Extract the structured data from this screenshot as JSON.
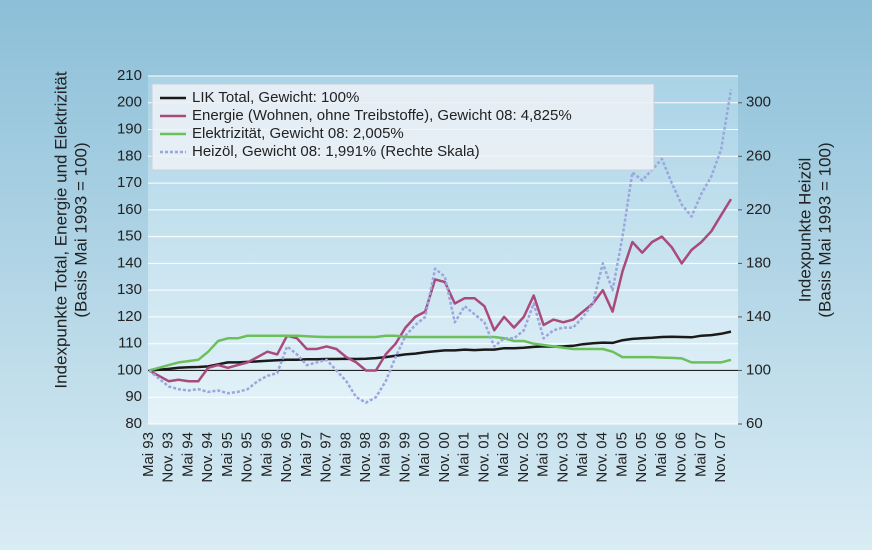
{
  "chart_data": {
    "type": "line",
    "ylabel": [
      "Indexpunkte Total, Energie und Elektrizität",
      "(Basis Mai 1993 = 100)"
    ],
    "y2label": [
      "Indexpunkte Heizöl",
      "(Basis Mai 1993 = 100)"
    ],
    "categories": [
      "Mai 93",
      null,
      "Nov. 93",
      null,
      "Mai 94",
      null,
      "Nov. 94",
      null,
      "Mai 95",
      null,
      "Nov. 95",
      null,
      "Mai 96",
      null,
      "Nov. 96",
      null,
      "Mai 97",
      null,
      "Nov. 97",
      null,
      "Mai 98",
      null,
      "Nov. 98",
      null,
      "Mai 99",
      null,
      "Nov. 99",
      null,
      "Mai 00",
      null,
      "Nov. 00",
      null,
      "Mai 01",
      null,
      "Nov. 01",
      null,
      "Mai 02",
      null,
      "Nov. 02",
      null,
      "Mai 03",
      null,
      "Nov. 03",
      null,
      "Mai 04",
      null,
      "Nov. 04",
      null,
      "Mai 05",
      null,
      "Nov. 05",
      null,
      "Mai 06",
      null,
      "Nov. 06",
      null,
      "Mai 07",
      null,
      "Nov. 07",
      null
    ],
    "series": [
      {
        "name": "LIK Total, Gewicht: 100%",
        "color": "#1a1a1a",
        "style": "solid",
        "values": [
          100,
          100.3,
          100.6,
          101,
          101.2,
          101.3,
          101.5,
          102.3,
          103,
          103,
          103.2,
          103.4,
          103.6,
          103.8,
          104,
          104,
          104.2,
          104.2,
          104.3,
          104.3,
          104.4,
          104.3,
          104.4,
          104.6,
          105,
          105.5,
          106,
          106.3,
          106.8,
          107.2,
          107.5,
          107.5,
          107.8,
          107.6,
          107.8,
          107.8,
          108.3,
          108.3,
          108.5,
          108.8,
          109,
          108.9,
          109,
          109.2,
          109.8,
          110.2,
          110.4,
          110.3,
          111.3,
          111.8,
          112,
          112.2,
          112.5,
          112.6,
          112.5,
          112.4,
          113,
          113.2,
          113.7,
          114.5
        ]
      },
      {
        "name": "Energie (Wohnen, ohne Treibstoffe), Gewicht 08: 4,825%",
        "color": "#a84a7c",
        "style": "solid",
        "values": [
          100,
          98,
          96,
          96.5,
          96,
          96,
          101,
          102,
          101,
          102,
          103,
          105,
          107,
          106,
          113,
          112,
          108,
          108,
          109,
          108,
          105,
          103,
          100,
          100,
          106,
          110,
          116,
          120,
          122,
          134,
          133,
          125,
          127,
          127,
          124,
          115,
          120,
          116,
          120,
          128,
          117,
          119,
          118,
          119,
          122,
          125,
          130,
          122,
          137,
          148,
          144,
          148,
          150,
          146,
          140,
          145,
          148,
          152,
          158,
          164
        ]
      },
      {
        "name": "Elektrizität, Gewicht 08: 2,005%",
        "color": "#6cc05a",
        "style": "solid",
        "values": [
          100,
          101,
          102,
          103,
          103.5,
          104,
          107,
          111,
          112,
          112,
          113,
          113,
          113,
          113,
          113,
          113,
          112.8,
          112.6,
          112.5,
          112.5,
          112.5,
          112.5,
          112.5,
          112.5,
          113,
          113,
          112.5,
          112.5,
          112.5,
          112.5,
          112.5,
          112.5,
          112.5,
          112.5,
          112.5,
          112.5,
          112,
          111,
          111,
          110,
          109.5,
          109,
          108.5,
          108,
          108,
          108,
          108,
          107,
          105,
          105,
          105,
          105,
          104.8,
          104.7,
          104.5,
          103,
          103,
          103,
          103,
          104
        ]
      },
      {
        "name": "Heizöl, Gewicht 08: 1,991% (Rechte Skala)",
        "color": "#9aa6dc",
        "style": "dotted",
        "axis": "y2",
        "values": [
          100,
          94,
          88,
          86,
          85,
          86,
          84,
          85,
          83,
          84,
          86,
          92,
          96,
          98,
          118,
          112,
          104,
          106,
          108,
          100,
          92,
          80,
          76,
          80,
          92,
          110,
          126,
          134,
          140,
          176,
          170,
          136,
          148,
          142,
          136,
          118,
          124,
          124,
          130,
          150,
          124,
          130,
          132,
          132,
          140,
          150,
          180,
          160,
          200,
          248,
          242,
          250,
          258,
          240,
          224,
          215,
          232,
          245,
          265,
          310
        ]
      }
    ],
    "ylim": [
      80,
      210
    ],
    "yticks": [
      80,
      90,
      100,
      110,
      120,
      130,
      140,
      150,
      160,
      170,
      180,
      190,
      200,
      210
    ],
    "y2lim": [
      60,
      320
    ],
    "y2ticks": [
      60,
      100,
      140,
      180,
      220,
      260,
      300
    ],
    "reference_line": 100,
    "grid": true,
    "legend": "top-left"
  }
}
